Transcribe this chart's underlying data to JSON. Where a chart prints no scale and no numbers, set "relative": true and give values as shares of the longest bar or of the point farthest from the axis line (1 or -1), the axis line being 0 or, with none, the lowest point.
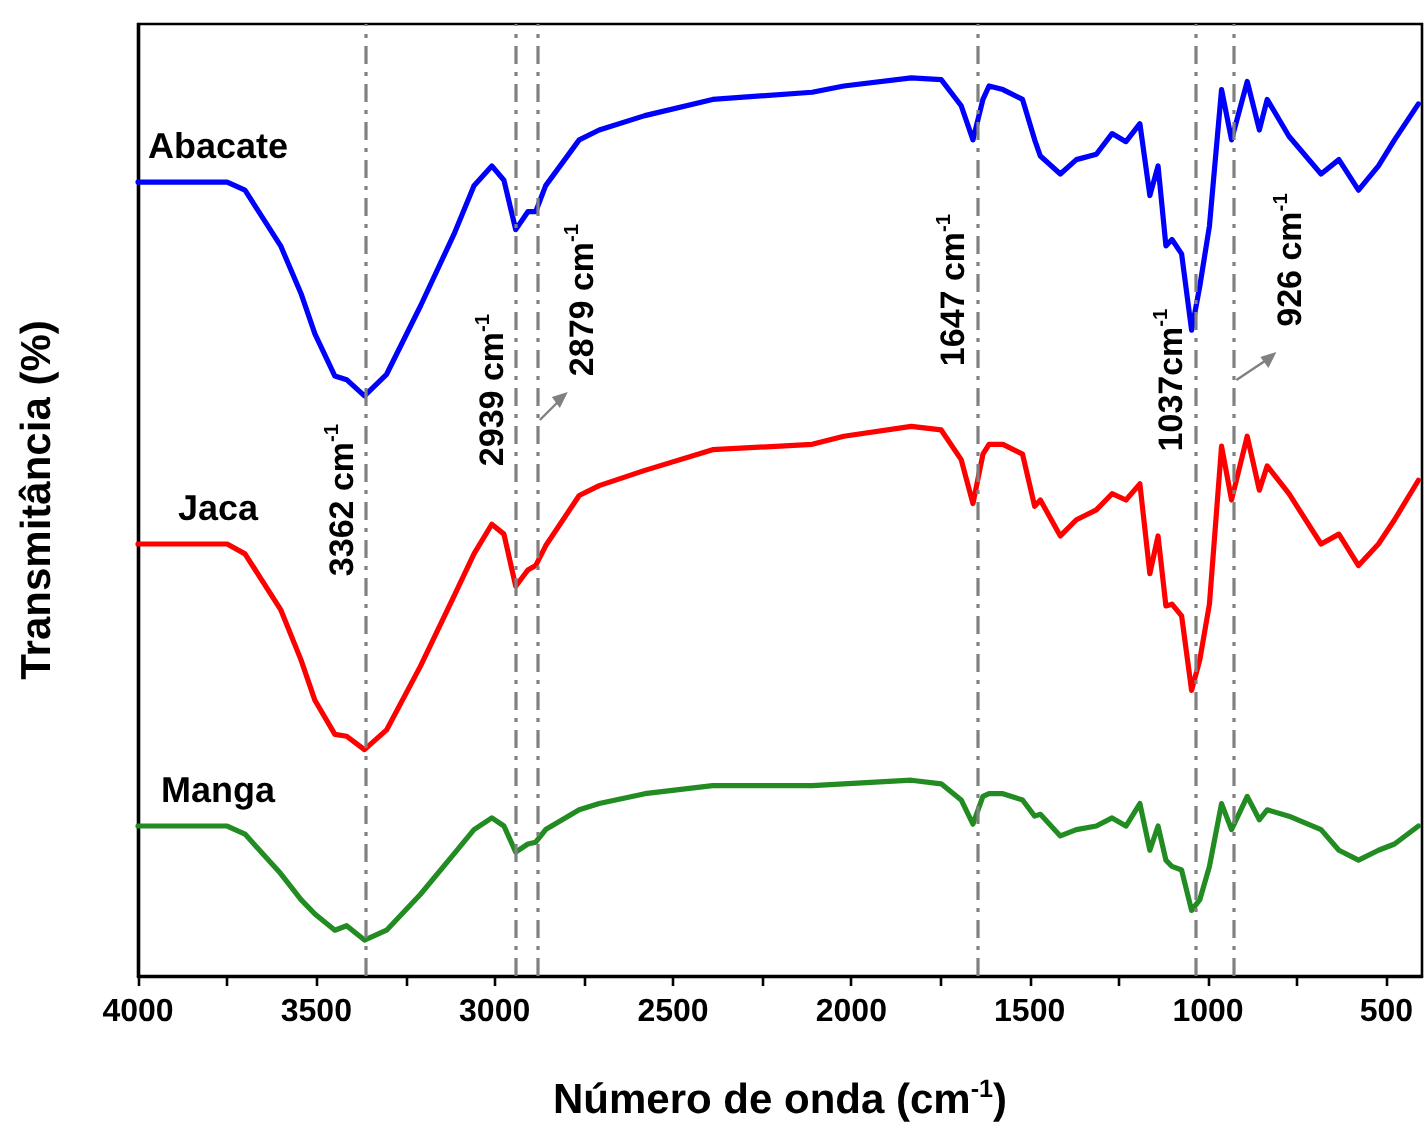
{
  "chart_data": {
    "type": "line",
    "relative": true,
    "xlabel": "Número de onda (cm$^{-1}$)",
    "ylabel": "Transmitância (%)",
    "tick_labels": "x",
    "marker": "none",
    "line_style": "solid",
    "xlim": [
      4000,
      400
    ],
    "xticks": [
      4000,
      {
        "value": 3750,
        "label": null
      },
      3500,
      {
        "value": 3250,
        "label": null
      },
      3000,
      {
        "value": 2750,
        "label": null
      },
      2500,
      {
        "value": 2250,
        "label": null
      },
      2000,
      {
        "value": 1750,
        "label": null
      },
      1500,
      {
        "value": 1250,
        "label": null
      },
      1000,
      {
        "value": 750,
        "label": null
      },
      500
    ],
    "x": [
      4000,
      3750,
      3700,
      3600,
      3543,
      3504,
      3448,
      3415,
      3365,
      3303,
      3208,
      3114,
      3058,
      3008,
      2974,
      2941,
      2907,
      2885,
      2857,
      2763,
      2707,
      2579,
      2389,
      2110,
      2021,
      1832,
      1748,
      1692,
      1659,
      1631,
      1614,
      1575,
      1520,
      1486,
      1470,
      1414,
      1369,
      1313,
      1269,
      1230,
      1191,
      1163,
      1140,
      1118,
      1101,
      1074,
      1046,
      1023,
      996,
      962,
      934,
      890,
      856,
      834,
      773,
      683,
      633,
      578,
      522,
      477,
      410
    ],
    "series": [
      {
        "name": "Abacate",
        "color": "#0000ff",
        "values": [
          0.884,
          0.884,
          0.875,
          0.813,
          0.76,
          0.715,
          0.668,
          0.664,
          0.646,
          0.67,
          0.746,
          0.826,
          0.88,
          0.902,
          0.886,
          0.831,
          0.851,
          0.851,
          0.88,
          0.931,
          0.942,
          0.958,
          0.976,
          0.984,
          0.991,
          1,
          0.998,
          0.969,
          0.931,
          0.976,
          0.991,
          0.987,
          0.976,
          0.931,
          0.913,
          0.893,
          0.909,
          0.915,
          0.938,
          0.929,
          0.949,
          0.869,
          0.902,
          0.813,
          0.82,
          0.804,
          0.719,
          0.768,
          0.835,
          0.987,
          0.931,
          0.996,
          0.942,
          0.976,
          0.935,
          0.893,
          0.909,
          0.875,
          0.902,
          0.931,
          0.971
        ]
      },
      {
        "name": "Jaca",
        "color": "#ff0000",
        "values": [
          0.481,
          0.481,
          0.47,
          0.408,
          0.352,
          0.307,
          0.269,
          0.267,
          0.252,
          0.274,
          0.345,
          0.423,
          0.47,
          0.503,
          0.492,
          0.434,
          0.452,
          0.457,
          0.479,
          0.535,
          0.546,
          0.563,
          0.586,
          0.592,
          0.601,
          0.612,
          0.608,
          0.575,
          0.526,
          0.581,
          0.592,
          0.592,
          0.581,
          0.523,
          0.53,
          0.49,
          0.508,
          0.519,
          0.537,
          0.53,
          0.548,
          0.448,
          0.49,
          0.412,
          0.414,
          0.401,
          0.318,
          0.352,
          0.414,
          0.59,
          0.53,
          0.601,
          0.541,
          0.568,
          0.537,
          0.481,
          0.492,
          0.457,
          0.481,
          0.508,
          0.552
        ]
      },
      {
        "name": "Manga",
        "color": "#228b22",
        "values": [
          0.167,
          0.167,
          0.158,
          0.114,
          0.085,
          0.069,
          0.051,
          0.056,
          0.04,
          0.051,
          0.091,
          0.136,
          0.163,
          0.176,
          0.167,
          0.138,
          0.147,
          0.149,
          0.163,
          0.185,
          0.192,
          0.203,
          0.212,
          0.212,
          0.214,
          0.218,
          0.214,
          0.196,
          0.169,
          0.2,
          0.203,
          0.203,
          0.196,
          0.178,
          0.18,
          0.156,
          0.163,
          0.167,
          0.176,
          0.167,
          0.192,
          0.14,
          0.167,
          0.129,
          0.122,
          0.118,
          0.073,
          0.085,
          0.122,
          0.192,
          0.163,
          0.2,
          0.174,
          0.185,
          0.178,
          0.163,
          0.14,
          0.129,
          0.14,
          0.147,
          0.167
        ]
      }
    ],
    "ref_lines": [
      {
        "axis": "x",
        "value": 3362,
        "label": "3362 cm$^{-1}$",
        "color": "#808080",
        "line_style": "dashed"
      },
      {
        "axis": "x",
        "value": 2939,
        "label": "2939 cm$^{-1}$",
        "color": "#808080",
        "line_style": "dashed"
      },
      {
        "axis": "x",
        "value": 2879,
        "label": "2879 cm$^{-1}$",
        "color": "#808080",
        "line_style": "dashed"
      },
      {
        "axis": "x",
        "value": 1647,
        "label": "1647 cm$^{-1}$",
        "color": "#808080",
        "line_style": "dashed"
      },
      {
        "axis": "x",
        "value": 1037,
        "label": "1037cm$^{-1}$",
        "color": "#808080",
        "line_style": "dashed"
      },
      {
        "axis": "x",
        "value": 926,
        "label": "926 cm$^{-1}$",
        "color": "#808080",
        "line_style": "dashed"
      }
    ]
  }
}
